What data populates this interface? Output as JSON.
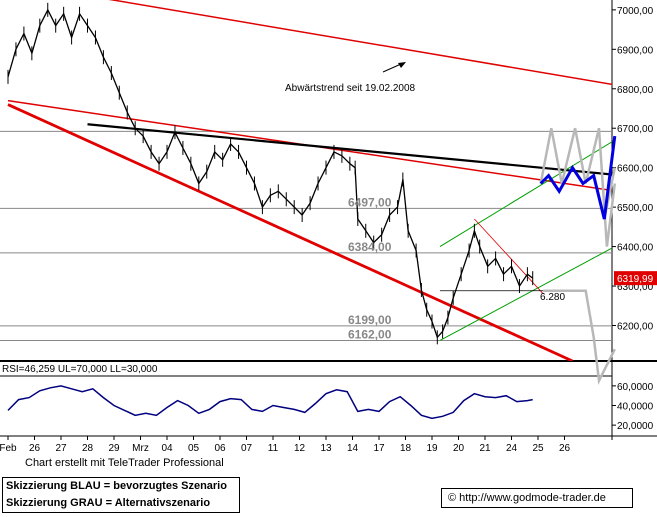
{
  "chart_data": [
    {
      "type": "candlestick",
      "title": "",
      "x_tick_labels": [
        "Feb",
        "26",
        "27",
        "28",
        "29",
        "Mrz",
        "04",
        "05",
        "06",
        "07",
        "11",
        "12",
        "13",
        "14",
        "17",
        "18",
        "19",
        "20",
        "21",
        "24",
        "25",
        "26"
      ],
      "y_axis": {
        "position": "right",
        "ylim": [
          6110,
          7025
        ],
        "ticks": [
          6200,
          6300,
          6400,
          6500,
          6600,
          6700,
          6800,
          6900,
          7000
        ],
        "tick_labels": [
          "6200,00",
          "6300,00",
          "6400,00",
          "6500,00",
          "6600,00",
          "6700,00",
          "6800,00",
          "6900,00",
          "7000,00"
        ]
      },
      "current_price_label": "6319,99",
      "horizontal_levels": [
        {
          "value": 6692,
          "label": ""
        },
        {
          "value": 6497,
          "label": "6497,00"
        },
        {
          "value": 6384,
          "label": "6384,00"
        },
        {
          "value": 6199,
          "label": "6199,00"
        },
        {
          "value": 6162,
          "label": "6162,00"
        }
      ],
      "annotations": [
        {
          "text": "Abwärtstrend seit 19.02.2008"
        },
        {
          "text": "6.280"
        }
      ],
      "price_path": [
        {
          "x": 0.0,
          "y": 6830
        },
        {
          "x": 0.3,
          "y": 6900
        },
        {
          "x": 0.6,
          "y": 6940
        },
        {
          "x": 0.9,
          "y": 6890
        },
        {
          "x": 1.2,
          "y": 6960
        },
        {
          "x": 1.5,
          "y": 7000
        },
        {
          "x": 1.8,
          "y": 6960
        },
        {
          "x": 2.1,
          "y": 6990
        },
        {
          "x": 2.4,
          "y": 6930
        },
        {
          "x": 2.7,
          "y": 6990
        },
        {
          "x": 3.0,
          "y": 6960
        },
        {
          "x": 3.3,
          "y": 6930
        },
        {
          "x": 3.6,
          "y": 6880
        },
        {
          "x": 3.9,
          "y": 6840
        },
        {
          "x": 4.2,
          "y": 6790
        },
        {
          "x": 4.5,
          "y": 6740
        },
        {
          "x": 4.8,
          "y": 6700
        },
        {
          "x": 5.1,
          "y": 6680
        },
        {
          "x": 5.4,
          "y": 6640
        },
        {
          "x": 5.7,
          "y": 6610
        },
        {
          "x": 6.0,
          "y": 6640
        },
        {
          "x": 6.3,
          "y": 6690
        },
        {
          "x": 6.6,
          "y": 6650
        },
        {
          "x": 6.9,
          "y": 6610
        },
        {
          "x": 7.2,
          "y": 6560
        },
        {
          "x": 7.5,
          "y": 6590
        },
        {
          "x": 7.8,
          "y": 6640
        },
        {
          "x": 8.1,
          "y": 6620
        },
        {
          "x": 8.4,
          "y": 6660
        },
        {
          "x": 8.7,
          "y": 6640
        },
        {
          "x": 9.0,
          "y": 6600
        },
        {
          "x": 9.3,
          "y": 6560
        },
        {
          "x": 9.6,
          "y": 6500
        },
        {
          "x": 9.9,
          "y": 6530
        },
        {
          "x": 10.2,
          "y": 6540
        },
        {
          "x": 10.5,
          "y": 6520
        },
        {
          "x": 10.8,
          "y": 6500
        },
        {
          "x": 11.1,
          "y": 6480
        },
        {
          "x": 11.4,
          "y": 6510
        },
        {
          "x": 11.7,
          "y": 6560
        },
        {
          "x": 12.0,
          "y": 6600
        },
        {
          "x": 12.3,
          "y": 6640
        },
        {
          "x": 12.6,
          "y": 6630
        },
        {
          "x": 12.9,
          "y": 6610
        },
        {
          "x": 13.1,
          "y": 6600
        },
        {
          "x": 13.2,
          "y": 6470
        },
        {
          "x": 13.5,
          "y": 6440
        },
        {
          "x": 13.8,
          "y": 6410
        },
        {
          "x": 14.1,
          "y": 6430
        },
        {
          "x": 14.4,
          "y": 6480
        },
        {
          "x": 14.7,
          "y": 6500
        },
        {
          "x": 14.9,
          "y": 6570
        },
        {
          "x": 15.1,
          "y": 6440
        },
        {
          "x": 15.4,
          "y": 6390
        },
        {
          "x": 15.6,
          "y": 6290
        },
        {
          "x": 15.8,
          "y": 6240
        },
        {
          "x": 16.0,
          "y": 6210
        },
        {
          "x": 16.2,
          "y": 6170
        },
        {
          "x": 16.4,
          "y": 6185
        },
        {
          "x": 16.6,
          "y": 6220
        },
        {
          "x": 16.8,
          "y": 6270
        },
        {
          "x": 17.1,
          "y": 6330
        },
        {
          "x": 17.4,
          "y": 6390
        },
        {
          "x": 17.6,
          "y": 6440
        },
        {
          "x": 17.8,
          "y": 6400
        },
        {
          "x": 18.1,
          "y": 6350
        },
        {
          "x": 18.4,
          "y": 6370
        },
        {
          "x": 18.7,
          "y": 6330
        },
        {
          "x": 19.0,
          "y": 6350
        },
        {
          "x": 19.3,
          "y": 6300
        },
        {
          "x": 19.6,
          "y": 6330
        },
        {
          "x": 19.8,
          "y": 6320
        }
      ],
      "trend_lines": [
        {
          "color": "#e00000",
          "width": 1.5,
          "points": [
            [
              0.0,
              6770
            ],
            [
              22.9,
              6541
            ]
          ]
        },
        {
          "color": "#e00000",
          "width": 1.5,
          "points": [
            [
              0.0,
              7070
            ],
            [
              22.9,
              6810
            ]
          ]
        },
        {
          "color": "#e00000",
          "width": 2.8,
          "points": [
            [
              0.0,
              6760
            ],
            [
              21.3,
              6110
            ]
          ]
        },
        {
          "color": "#000000",
          "width": 2.2,
          "points": [
            [
              3.0,
              6710
            ],
            [
              22.9,
              6582
            ]
          ]
        },
        {
          "color": "#00a000",
          "width": 1,
          "points": [
            [
              16.3,
              6400
            ],
            [
              22.9,
              6670
            ]
          ]
        },
        {
          "color": "#00a000",
          "width": 1,
          "points": [
            [
              16.3,
              6162
            ],
            [
              22.9,
              6400
            ]
          ]
        },
        {
          "color": "#e00000",
          "width": 0.8,
          "points": [
            [
              17.6,
              6470
            ],
            [
              20.2,
              6280
            ]
          ]
        },
        {
          "color": "#000000",
          "width": 0.8,
          "points": [
            [
              16.3,
              6288
            ],
            [
              20.2,
              6288
            ]
          ]
        }
      ],
      "scenarios": [
        {
          "name": "Skizzierung BLAU = bevorzugtes Szenario",
          "color": "#0000e0",
          "points": [
            [
              20.1,
              6560
            ],
            [
              20.4,
              6580
            ],
            [
              20.8,
              6540
            ],
            [
              21.3,
              6600
            ],
            [
              21.7,
              6560
            ],
            [
              22.1,
              6580
            ],
            [
              22.5,
              6470
            ],
            [
              22.9,
              6680
            ]
          ]
        },
        {
          "name": "Skizzierung GRAU = Alternativszenario",
          "color": "#b8b8b8",
          "points": [
            [
              20.1,
              6560
            ],
            [
              20.5,
              6700
            ],
            [
              20.9,
              6560
            ],
            [
              21.4,
              6700
            ],
            [
              21.8,
              6560
            ],
            [
              22.3,
              6700
            ],
            [
              22.6,
              6400
            ],
            [
              22.9,
              6560
            ]
          ]
        },
        {
          "name": "",
          "color": "#b8b8b8",
          "points": [
            [
              20.2,
              6288
            ],
            [
              21.8,
              6288
            ],
            [
              22.1,
              6170
            ],
            [
              22.3,
              6060
            ],
            [
              22.9,
              6140
            ]
          ]
        },
        {
          "name": "",
          "color": "#b8b8b8",
          "points": [
            [
              22.5,
              6470
            ],
            [
              22.9,
              6600
            ]
          ]
        }
      ]
    },
    {
      "type": "line",
      "title": "RSI=46,259 UL=70,000 LL=30,000",
      "y_axis": {
        "position": "right",
        "ylim": [
          13,
          68
        ],
        "ticks": [
          20,
          40,
          60
        ],
        "tick_labels": [
          "20,0000",
          "40,0000",
          "60,0000"
        ]
      },
      "series": [
        {
          "name": "",
          "color": "#000080",
          "x": [
            0.0,
            0.4,
            0.8,
            1.2,
            1.6,
            2.0,
            2.4,
            2.8,
            3.2,
            3.6,
            4.0,
            4.4,
            4.8,
            5.2,
            5.6,
            6.0,
            6.4,
            6.8,
            7.2,
            7.6,
            8.0,
            8.4,
            8.8,
            9.2,
            9.6,
            10.0,
            10.4,
            10.8,
            11.2,
            11.6,
            12.0,
            12.4,
            12.8,
            13.2,
            13.6,
            14.0,
            14.4,
            14.8,
            15.2,
            15.6,
            16.0,
            16.4,
            16.8,
            17.2,
            17.6,
            18.0,
            18.4,
            18.8,
            19.2,
            19.6,
            19.8
          ],
          "values": [
            35,
            46,
            48,
            55,
            58,
            60,
            57,
            54,
            57,
            48,
            40,
            35,
            30,
            32,
            30,
            38,
            45,
            40,
            32,
            36,
            44,
            47,
            46,
            36,
            34,
            40,
            38,
            36,
            33,
            42,
            52,
            56,
            54,
            34,
            36,
            34,
            44,
            49,
            40,
            30,
            27,
            29,
            33,
            45,
            52,
            49,
            48,
            50,
            44,
            45,
            46
          ]
        }
      ]
    }
  ],
  "credit": "Chart erstellt mit TeleTrader Professional",
  "legend": {
    "blue": "Skizzierung BLAU = bevorzugtes Szenario",
    "grey": "Skizzierung GRAU = Alternativszenario"
  },
  "source": "© http://www.godmode-trader.de"
}
